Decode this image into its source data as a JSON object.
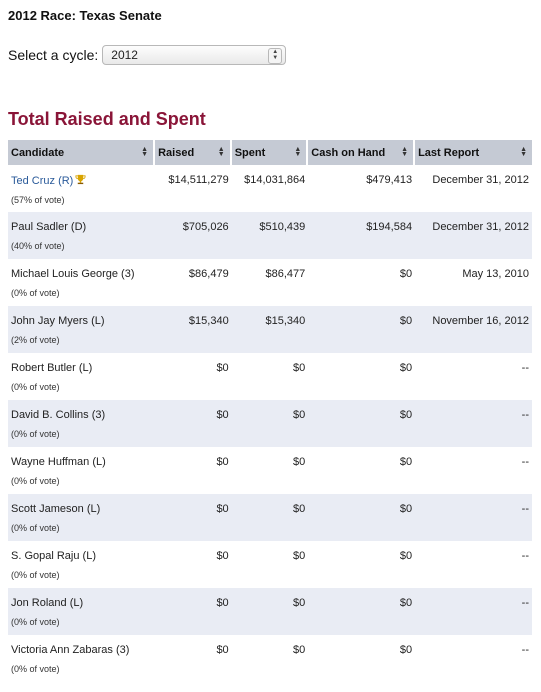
{
  "race_title": "2012 Race: Texas Senate",
  "cycle": {
    "label": "Select a cycle:",
    "selected": "2012"
  },
  "section_title": "Total Raised and Spent",
  "table": {
    "columns": [
      "Candidate",
      "Raised",
      "Spent",
      "Cash on Hand",
      "Last Report"
    ],
    "rows": [
      {
        "name": "Ted Cruz (R)",
        "vote": "(57% of vote)",
        "raised": "$14,511,279",
        "spent": "$14,031,864",
        "cash": "$479,413",
        "last": "December 31, 2012",
        "winner": true
      },
      {
        "name": "Paul Sadler (D)",
        "vote": "(40% of vote)",
        "raised": "$705,026",
        "spent": "$510,439",
        "cash": "$194,584",
        "last": "December 31, 2012"
      },
      {
        "name": "Michael Louis George (3)",
        "vote": "(0% of vote)",
        "raised": "$86,479",
        "spent": "$86,477",
        "cash": "$0",
        "last": "May 13, 2010"
      },
      {
        "name": "John Jay Myers (L)",
        "vote": "(2% of vote)",
        "raised": "$15,340",
        "spent": "$15,340",
        "cash": "$0",
        "last": "November 16, 2012"
      },
      {
        "name": "Robert Butler (L)",
        "vote": "(0% of vote)",
        "raised": "$0",
        "spent": "$0",
        "cash": "$0",
        "last": "--"
      },
      {
        "name": "David B. Collins (3)",
        "vote": "(0% of vote)",
        "raised": "$0",
        "spent": "$0",
        "cash": "$0",
        "last": "--"
      },
      {
        "name": "Wayne Huffman (L)",
        "vote": "(0% of vote)",
        "raised": "$0",
        "spent": "$0",
        "cash": "$0",
        "last": "--"
      },
      {
        "name": "Scott Jameson (L)",
        "vote": "(0% of vote)",
        "raised": "$0",
        "spent": "$0",
        "cash": "$0",
        "last": "--"
      },
      {
        "name": "S. Gopal Raju (L)",
        "vote": "(0% of vote)",
        "raised": "$0",
        "spent": "$0",
        "cash": "$0",
        "last": "--"
      },
      {
        "name": "Jon Roland (L)",
        "vote": "(0% of vote)",
        "raised": "$0",
        "spent": "$0",
        "cash": "$0",
        "last": "--"
      },
      {
        "name": "Victoria Ann Zabaras (3)",
        "vote": "(0% of vote)",
        "raised": "$0",
        "spent": "$0",
        "cash": "$0",
        "last": "--"
      }
    ]
  },
  "icons": {
    "sort": "sort-arrows-icon",
    "winner": "trophy-icon",
    "select": "select-arrows-icon"
  },
  "colors": {
    "section_title": "#8a1538",
    "header_bg": "#c5cad4",
    "alt_row_bg": "#e9ecf4",
    "link": "#2a5a9a",
    "trophy": "#d9a400"
  }
}
